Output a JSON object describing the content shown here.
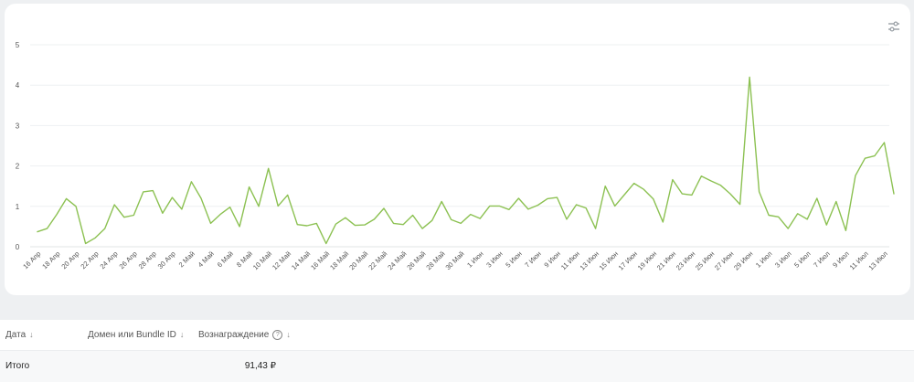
{
  "chart_data": {
    "type": "line",
    "title": "",
    "xlabel": "",
    "ylabel": "",
    "ylim": [
      0,
      5
    ],
    "yticks": [
      0,
      1,
      2,
      3,
      4,
      5
    ],
    "grid": true,
    "legend": "none",
    "color": "#8cc152",
    "xtick_labels": [
      "16 Апр",
      "18 Апр",
      "20 Апр",
      "22 Апр",
      "24 Апр",
      "26 Апр",
      "28 Апр",
      "30 Апр",
      "2 Май",
      "4 Май",
      "6 Май",
      "8 Май",
      "10 Май",
      "12 Май",
      "14 Май",
      "16 Май",
      "18 Май",
      "20 Май",
      "22 Май",
      "24 Май",
      "26 Май",
      "28 Май",
      "30 Май",
      "1 Июн",
      "3 Июн",
      "5 Июн",
      "7 Июн",
      "9 Июн",
      "11 Июн",
      "13 Июн",
      "15 Июн",
      "17 Июн",
      "19 Июн",
      "21 Июн",
      "23 Июн",
      "25 Июн",
      "27 Июн",
      "29 Июн",
      "1 Июл",
      "3 Июл",
      "5 Июл",
      "7 Июл",
      "9 Июл",
      "11 Июл",
      "13 Июл"
    ],
    "series": [
      {
        "values": [
          0.37,
          0.45,
          0.8,
          1.19,
          1.0,
          0.08,
          0.22,
          0.45,
          1.04,
          0.73,
          0.78,
          1.36,
          1.39,
          0.83,
          1.22,
          0.93,
          1.61,
          1.2,
          0.58,
          0.8,
          0.98,
          0.5,
          1.48,
          1.0,
          1.94,
          1.01,
          1.28,
          0.55,
          0.52,
          0.58,
          0.08,
          0.56,
          0.72,
          0.53,
          0.54,
          0.68,
          0.95,
          0.58,
          0.55,
          0.78,
          0.45,
          0.65,
          1.12,
          0.67,
          0.58,
          0.8,
          0.7,
          1.01,
          1.01,
          0.92,
          1.2,
          0.93,
          1.03,
          1.19,
          1.22,
          0.68,
          1.04,
          0.96,
          0.45,
          1.5,
          1.01,
          1.29,
          1.57,
          1.42,
          1.18,
          0.61,
          1.66,
          1.31,
          1.28,
          1.75,
          1.63,
          1.52,
          1.31,
          1.05,
          4.2,
          1.36,
          0.78,
          0.74,
          0.45,
          0.82,
          0.68,
          1.2,
          0.54,
          1.12,
          0.4,
          1.76,
          2.19,
          2.25,
          2.58,
          1.31
        ]
      }
    ]
  },
  "toolbar": {
    "settings_icon": "sliders-icon"
  },
  "table": {
    "headers": {
      "date": "Дата",
      "domain": "Домен или Bundle ID",
      "reward": "Вознаграждение"
    },
    "total_row": {
      "label": "Итого",
      "reward": "91,43 ₽"
    }
  }
}
